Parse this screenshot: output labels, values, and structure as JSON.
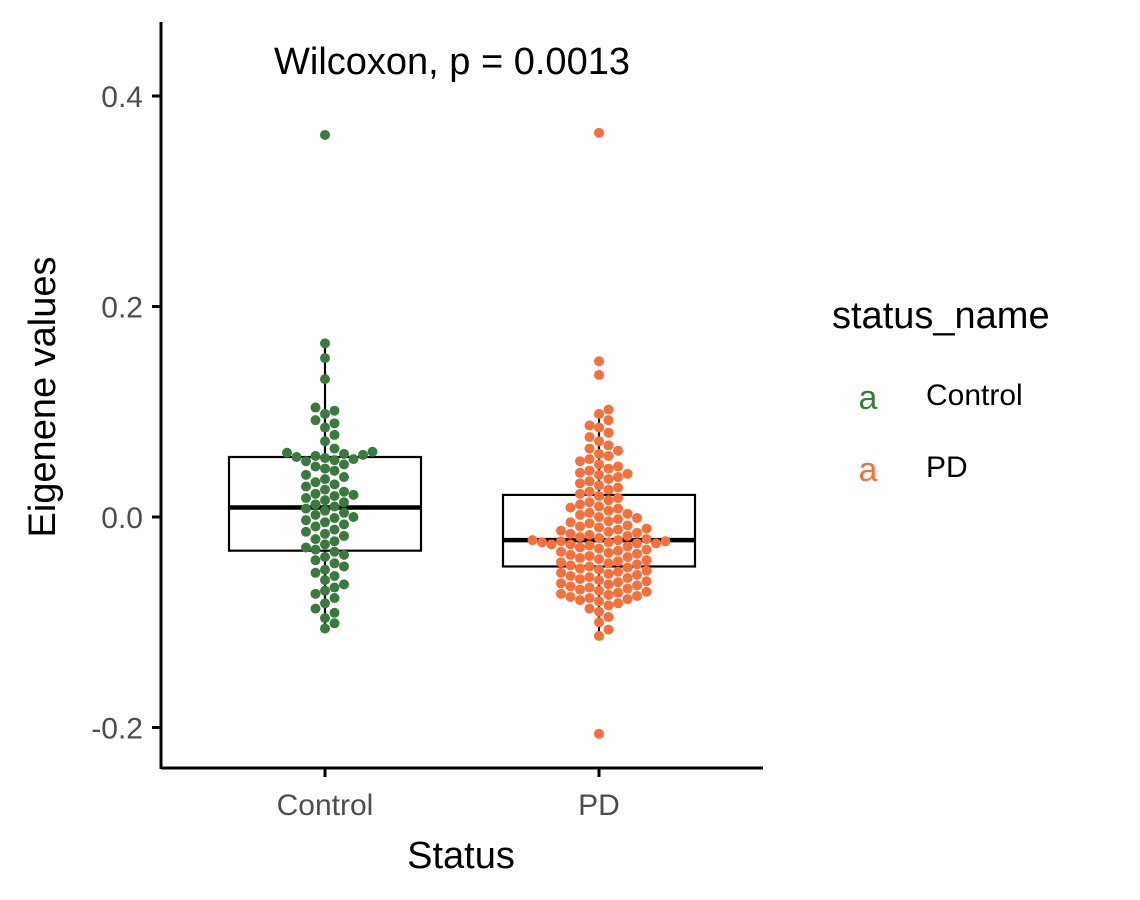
{
  "chart_data": {
    "type": "boxplot",
    "annotation": "Wilcoxon, p = 0.0013",
    "xlabel": "Status",
    "ylabel": "Eigenene values",
    "categories": [
      "Control",
      "PD"
    ],
    "yticks": [
      -0.2,
      0.0,
      0.2,
      0.4
    ],
    "ytick_labels": [
      "-0.2",
      "0.0",
      "0.2",
      "0.4"
    ],
    "ylim": [
      -0.24,
      0.47
    ],
    "legend": {
      "title": "status_name",
      "key_glyph": "a",
      "entries": [
        {
          "label": "Control",
          "color": "#3b7a3f"
        },
        {
          "label": "PD",
          "color": "#f7703b"
        }
      ]
    },
    "boxes": [
      {
        "category": "Control",
        "q1": -0.032,
        "median": 0.009,
        "q3": 0.057,
        "whisker_low": -0.106,
        "whisker_high": 0.165
      },
      {
        "category": "PD",
        "q1": -0.047,
        "median": -0.022,
        "q3": 0.021,
        "whisker_low": -0.113,
        "whisker_high": 0.102
      }
    ],
    "series": [
      {
        "name": "Control",
        "color": "#3b7a3f",
        "values": [
          0.363,
          0.165,
          0.151,
          0.131,
          0.104,
          0.101,
          0.098,
          0.092,
          0.089,
          0.085,
          0.078,
          0.072,
          0.065,
          0.062,
          0.061,
          0.06,
          0.059,
          0.058,
          0.057,
          0.056,
          0.055,
          0.054,
          0.053,
          0.05,
          0.048,
          0.046,
          0.044,
          0.04,
          0.038,
          0.036,
          0.033,
          0.031,
          0.029,
          0.026,
          0.024,
          0.022,
          0.021,
          0.02,
          0.018,
          0.016,
          0.014,
          0.012,
          0.01,
          0.008,
          0.006,
          0.004,
          0.002,
          0.0,
          -0.001,
          -0.003,
          -0.005,
          -0.007,
          -0.009,
          -0.012,
          -0.014,
          -0.016,
          -0.018,
          -0.021,
          -0.023,
          -0.026,
          -0.029,
          -0.031,
          -0.033,
          -0.036,
          -0.038,
          -0.041,
          -0.044,
          -0.047,
          -0.05,
          -0.053,
          -0.056,
          -0.06,
          -0.064,
          -0.067,
          -0.07,
          -0.073,
          -0.077,
          -0.082,
          -0.087,
          -0.091,
          -0.096,
          -0.101,
          -0.106
        ]
      },
      {
        "name": "PD",
        "color": "#f7703b",
        "values": [
          0.365,
          0.148,
          0.135,
          0.102,
          0.098,
          0.092,
          0.087,
          0.085,
          0.08,
          0.076,
          0.072,
          0.068,
          0.065,
          0.063,
          0.06,
          0.058,
          0.055,
          0.053,
          0.05,
          0.048,
          0.046,
          0.044,
          0.042,
          0.041,
          0.04,
          0.038,
          0.036,
          0.034,
          0.032,
          0.03,
          0.028,
          0.026,
          0.024,
          0.022,
          0.02,
          0.018,
          0.016,
          0.014,
          0.012,
          0.01,
          0.009,
          0.008,
          0.006,
          0.004,
          0.003,
          0.002,
          0.0,
          -0.001,
          -0.002,
          -0.004,
          -0.005,
          -0.006,
          -0.008,
          -0.009,
          -0.01,
          -0.011,
          -0.012,
          -0.013,
          -0.014,
          -0.015,
          -0.016,
          -0.017,
          -0.018,
          -0.019,
          -0.02,
          -0.021,
          -0.022,
          -0.022,
          -0.023,
          -0.023,
          -0.024,
          -0.024,
          -0.025,
          -0.025,
          -0.026,
          -0.026,
          -0.027,
          -0.028,
          -0.029,
          -0.03,
          -0.031,
          -0.032,
          -0.033,
          -0.034,
          -0.035,
          -0.036,
          -0.037,
          -0.038,
          -0.039,
          -0.04,
          -0.041,
          -0.042,
          -0.043,
          -0.044,
          -0.045,
          -0.046,
          -0.047,
          -0.048,
          -0.049,
          -0.05,
          -0.051,
          -0.052,
          -0.053,
          -0.054,
          -0.055,
          -0.056,
          -0.057,
          -0.058,
          -0.059,
          -0.06,
          -0.061,
          -0.062,
          -0.063,
          -0.064,
          -0.065,
          -0.066,
          -0.067,
          -0.068,
          -0.069,
          -0.07,
          -0.071,
          -0.072,
          -0.073,
          -0.074,
          -0.075,
          -0.076,
          -0.077,
          -0.078,
          -0.079,
          -0.08,
          -0.082,
          -0.084,
          -0.087,
          -0.09,
          -0.095,
          -0.1,
          -0.107,
          -0.113,
          -0.206
        ]
      }
    ],
    "grid": false,
    "legend_placement": "right"
  }
}
